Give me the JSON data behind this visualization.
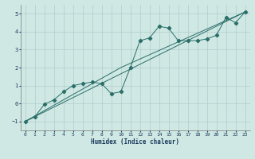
{
  "xlabel": "Humidex (Indice chaleur)",
  "background_color": "#cfe8e4",
  "grid_color": "#b0cccc",
  "line_color": "#2a6e68",
  "xlim": [
    -0.5,
    23.5
  ],
  "ylim": [
    -1.5,
    5.5
  ],
  "xticks": [
    0,
    1,
    2,
    3,
    4,
    5,
    6,
    7,
    8,
    9,
    10,
    11,
    12,
    13,
    14,
    15,
    16,
    17,
    18,
    19,
    20,
    21,
    22,
    23
  ],
  "yticks": [
    -1,
    0,
    1,
    2,
    3,
    4,
    5
  ],
  "scatter_x": [
    0,
    1,
    2,
    3,
    4,
    5,
    6,
    7,
    8,
    9,
    10,
    11,
    12,
    13,
    14,
    15,
    16,
    17,
    18,
    19,
    20,
    21,
    22,
    23
  ],
  "scatter_y": [
    -1.0,
    -0.75,
    -0.05,
    0.2,
    0.65,
    1.0,
    1.1,
    1.2,
    1.1,
    0.55,
    0.65,
    2.0,
    3.5,
    3.65,
    4.3,
    4.2,
    3.5,
    3.5,
    3.5,
    3.6,
    3.8,
    4.8,
    4.5,
    5.1
  ],
  "line2_x": [
    0,
    23
  ],
  "line2_y": [
    -1.0,
    5.1
  ],
  "line3_x": [
    0,
    10,
    23
  ],
  "line3_y": [
    -1.0,
    2.0,
    5.1
  ],
  "tick_color": "#1a3a5c",
  "xlabel_color": "#1a3a5c",
  "xlabel_fontsize": 5.5,
  "tick_fontsize": 4.5
}
